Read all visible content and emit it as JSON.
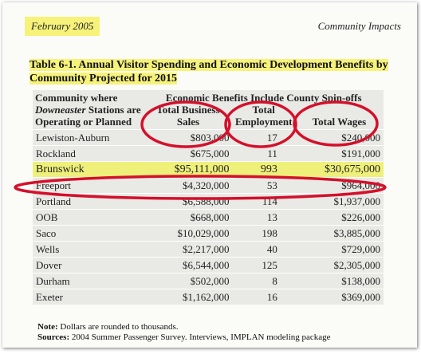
{
  "header": {
    "date": "February 2005",
    "section": "Community Impacts"
  },
  "table": {
    "title": "Table 6-1.  Annual Visitor Spending and Economic Development Benefits by Community Projected for 2015",
    "first_column_header": [
      "Community where",
      "Downeaster",
      "Stations are Operating or Planned"
    ],
    "group_header": "Economic Benefits Include County Spin-offs",
    "columns": [
      "Total Business Sales",
      "Total Employment",
      "Total Wages"
    ],
    "rows": [
      [
        "Lewiston-Auburn",
        "$803,000",
        17,
        "$240,000"
      ],
      [
        "Rockland",
        "$675,000",
        11,
        "$191,000"
      ],
      [
        "Brunswick",
        "$95,111,000",
        993,
        "$30,675,000"
      ],
      [
        "Freeport",
        "$4,320,000",
        53,
        "$964,000"
      ],
      [
        "Portland",
        "$6,588,000",
        114,
        "$1,937,000"
      ],
      [
        "OOB",
        "$668,000",
        13,
        "$226,000"
      ],
      [
        "Saco",
        "$10,029,000",
        198,
        "$3,885,000"
      ],
      [
        "Wells",
        "$2,217,000",
        40,
        "$729,000"
      ],
      [
        "Dover",
        "$6,544,000",
        125,
        "$2,305,000"
      ],
      [
        "Durham",
        "$502,000",
        8,
        "$138,000"
      ],
      [
        "Exeter",
        "$1,162,000",
        16,
        "$369,000"
      ]
    ]
  },
  "notes": [
    {
      "label": "Note:",
      "text": "Dollars are rounded to thousands."
    },
    {
      "label": "Sources:",
      "text": "2004 Summer Passenger Survey. Interviews, IMPLAN modeling package"
    }
  ]
}
